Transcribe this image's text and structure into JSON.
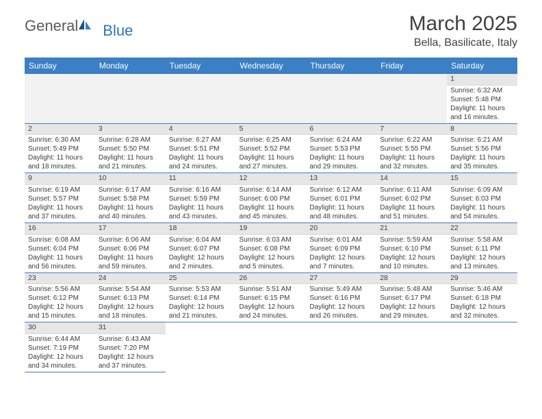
{
  "header": {
    "logo_general": "General",
    "logo_blue": "Blue",
    "month_title": "March 2025",
    "location": "Bella, Basilicate, Italy"
  },
  "colors": {
    "header_bg": "#3b7fc4",
    "header_fg": "#ffffff",
    "daynum_bg": "#e6e6e6",
    "cell_border": "#3b7fc4",
    "text": "#3c3c3c",
    "logo_dark": "#1f4f82",
    "logo_light": "#3b7fc4"
  },
  "weekdays": [
    "Sunday",
    "Monday",
    "Tuesday",
    "Wednesday",
    "Thursday",
    "Friday",
    "Saturday"
  ],
  "grid": [
    [
      null,
      null,
      null,
      null,
      null,
      null,
      {
        "n": "1",
        "sr": "6:32 AM",
        "ss": "5:48 PM",
        "dl": "11 hours and 16 minutes."
      }
    ],
    [
      {
        "n": "2",
        "sr": "6:30 AM",
        "ss": "5:49 PM",
        "dl": "11 hours and 18 minutes."
      },
      {
        "n": "3",
        "sr": "6:28 AM",
        "ss": "5:50 PM",
        "dl": "11 hours and 21 minutes."
      },
      {
        "n": "4",
        "sr": "6:27 AM",
        "ss": "5:51 PM",
        "dl": "11 hours and 24 minutes."
      },
      {
        "n": "5",
        "sr": "6:25 AM",
        "ss": "5:52 PM",
        "dl": "11 hours and 27 minutes."
      },
      {
        "n": "6",
        "sr": "6:24 AM",
        "ss": "5:53 PM",
        "dl": "11 hours and 29 minutes."
      },
      {
        "n": "7",
        "sr": "6:22 AM",
        "ss": "5:55 PM",
        "dl": "11 hours and 32 minutes."
      },
      {
        "n": "8",
        "sr": "6:21 AM",
        "ss": "5:56 PM",
        "dl": "11 hours and 35 minutes."
      }
    ],
    [
      {
        "n": "9",
        "sr": "6:19 AM",
        "ss": "5:57 PM",
        "dl": "11 hours and 37 minutes."
      },
      {
        "n": "10",
        "sr": "6:17 AM",
        "ss": "5:58 PM",
        "dl": "11 hours and 40 minutes."
      },
      {
        "n": "11",
        "sr": "6:16 AM",
        "ss": "5:59 PM",
        "dl": "11 hours and 43 minutes."
      },
      {
        "n": "12",
        "sr": "6:14 AM",
        "ss": "6:00 PM",
        "dl": "11 hours and 45 minutes."
      },
      {
        "n": "13",
        "sr": "6:12 AM",
        "ss": "6:01 PM",
        "dl": "11 hours and 48 minutes."
      },
      {
        "n": "14",
        "sr": "6:11 AM",
        "ss": "6:02 PM",
        "dl": "11 hours and 51 minutes."
      },
      {
        "n": "15",
        "sr": "6:09 AM",
        "ss": "6:03 PM",
        "dl": "11 hours and 54 minutes."
      }
    ],
    [
      {
        "n": "16",
        "sr": "6:08 AM",
        "ss": "6:04 PM",
        "dl": "11 hours and 56 minutes."
      },
      {
        "n": "17",
        "sr": "6:06 AM",
        "ss": "6:06 PM",
        "dl": "11 hours and 59 minutes."
      },
      {
        "n": "18",
        "sr": "6:04 AM",
        "ss": "6:07 PM",
        "dl": "12 hours and 2 minutes."
      },
      {
        "n": "19",
        "sr": "6:03 AM",
        "ss": "6:08 PM",
        "dl": "12 hours and 5 minutes."
      },
      {
        "n": "20",
        "sr": "6:01 AM",
        "ss": "6:09 PM",
        "dl": "12 hours and 7 minutes."
      },
      {
        "n": "21",
        "sr": "5:59 AM",
        "ss": "6:10 PM",
        "dl": "12 hours and 10 minutes."
      },
      {
        "n": "22",
        "sr": "5:58 AM",
        "ss": "6:11 PM",
        "dl": "12 hours and 13 minutes."
      }
    ],
    [
      {
        "n": "23",
        "sr": "5:56 AM",
        "ss": "6:12 PM",
        "dl": "12 hours and 15 minutes."
      },
      {
        "n": "24",
        "sr": "5:54 AM",
        "ss": "6:13 PM",
        "dl": "12 hours and 18 minutes."
      },
      {
        "n": "25",
        "sr": "5:53 AM",
        "ss": "6:14 PM",
        "dl": "12 hours and 21 minutes."
      },
      {
        "n": "26",
        "sr": "5:51 AM",
        "ss": "6:15 PM",
        "dl": "12 hours and 24 minutes."
      },
      {
        "n": "27",
        "sr": "5:49 AM",
        "ss": "6:16 PM",
        "dl": "12 hours and 26 minutes."
      },
      {
        "n": "28",
        "sr": "5:48 AM",
        "ss": "6:17 PM",
        "dl": "12 hours and 29 minutes."
      },
      {
        "n": "29",
        "sr": "5:46 AM",
        "ss": "6:18 PM",
        "dl": "12 hours and 32 minutes."
      }
    ],
    [
      {
        "n": "30",
        "sr": "6:44 AM",
        "ss": "7:19 PM",
        "dl": "12 hours and 34 minutes."
      },
      {
        "n": "31",
        "sr": "6:43 AM",
        "ss": "7:20 PM",
        "dl": "12 hours and 37 minutes."
      },
      null,
      null,
      null,
      null,
      null
    ]
  ],
  "labels": {
    "sunrise": "Sunrise:",
    "sunset": "Sunset:",
    "daylight": "Daylight:"
  }
}
